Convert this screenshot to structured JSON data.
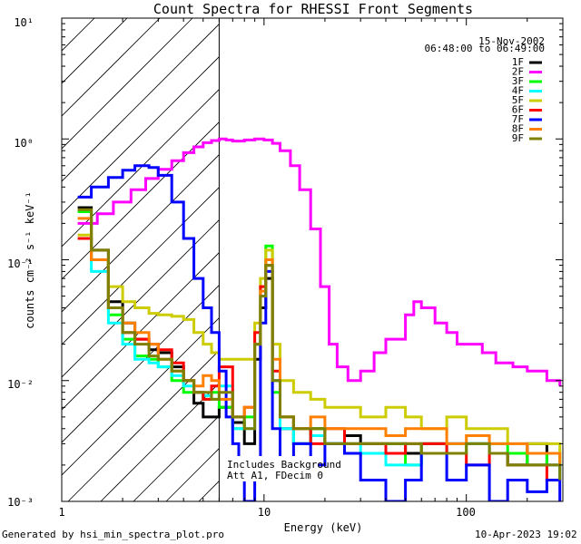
{
  "chart_data": {
    "type": "line",
    "title": "Count Spectra for RHESSI Front Segments",
    "xlabel": "Energy (keV)",
    "ylabel": "counts cm⁻² s⁻¹ keV⁻¹",
    "xscale": "log",
    "yscale": "log",
    "xlim": [
      1,
      300
    ],
    "ylim": [
      0.001,
      10
    ],
    "x_tick_labels": [
      "1",
      "10",
      "100"
    ],
    "y_tick_labels": [
      "10⁻³",
      "10⁻²",
      "10⁻¹",
      "10⁰",
      "10¹"
    ],
    "date": "15-Nov-2002",
    "time_range": "06:48:00 to 06:49:00",
    "hatched_region_below_keV": 6,
    "annotations": [
      "Includes Background",
      "Att A1, FDecim 0"
    ],
    "legend": [
      "1F",
      "2F",
      "3F",
      "4F",
      "5F",
      "6F",
      "7F",
      "8F",
      "9F"
    ],
    "series": [
      {
        "name": "1F",
        "color": "#000000",
        "x": [
          1.2,
          1.4,
          1.7,
          2.0,
          2.3,
          2.7,
          3.0,
          3.5,
          4.0,
          4.5,
          5.0,
          5.5,
          6.0,
          7.0,
          8.0,
          9.0,
          9.6,
          10.2,
          11.0,
          12.0,
          14.0,
          17.0,
          20.0,
          25.0,
          30.0,
          40.0,
          50.0,
          60.0,
          80.0,
          100.0,
          130.0,
          160.0,
          200.0,
          250.0,
          290.0
        ],
        "y": [
          0.27,
          0.12,
          0.045,
          0.03,
          0.022,
          0.018,
          0.017,
          0.013,
          0.01,
          0.0065,
          0.005,
          0.005,
          0.006,
          0.0045,
          0.003,
          0.015,
          0.04,
          0.07,
          0.01,
          0.004,
          0.003,
          0.004,
          0.003,
          0.0035,
          0.003,
          0.003,
          0.0025,
          0.003,
          0.003,
          0.003,
          0.0025,
          0.002,
          0.003,
          0.002,
          0.0015
        ]
      },
      {
        "name": "2F",
        "color": "#ff00ff",
        "x": [
          1.2,
          1.5,
          1.8,
          2.2,
          2.6,
          3.0,
          3.5,
          4.0,
          4.5,
          5.0,
          5.5,
          6.0,
          6.5,
          7.0,
          8.0,
          9.0,
          10.0,
          11.0,
          12.0,
          13.5,
          15.0,
          17.0,
          19.0,
          21.0,
          23.0,
          26.0,
          30.0,
          35.0,
          40.0,
          50.0,
          55.0,
          60.0,
          70.0,
          80.0,
          90.0,
          100.0,
          120.0,
          140.0,
          170.0,
          200.0,
          250.0,
          290.0
        ],
        "y": [
          0.2,
          0.24,
          0.3,
          0.38,
          0.47,
          0.56,
          0.66,
          0.77,
          0.86,
          0.93,
          0.97,
          1.0,
          0.98,
          0.96,
          0.98,
          1.0,
          0.98,
          0.92,
          0.8,
          0.6,
          0.38,
          0.18,
          0.06,
          0.02,
          0.013,
          0.01,
          0.012,
          0.017,
          0.022,
          0.035,
          0.045,
          0.04,
          0.03,
          0.025,
          0.02,
          0.02,
          0.017,
          0.014,
          0.013,
          0.012,
          0.01,
          0.009
        ]
      },
      {
        "name": "3F",
        "color": "#00ff00",
        "x": [
          1.2,
          1.4,
          1.7,
          2.0,
          2.3,
          2.7,
          3.0,
          3.5,
          4.0,
          4.5,
          5.0,
          5.5,
          6.0,
          7.0,
          8.0,
          9.0,
          9.6,
          10.2,
          11.0,
          12.0,
          14.0,
          17.0,
          20.0,
          25.0,
          30.0,
          40.0,
          50.0,
          60.0,
          80.0,
          100.0,
          130.0,
          160.0,
          200.0,
          250.0,
          290.0
        ],
        "y": [
          0.25,
          0.1,
          0.035,
          0.022,
          0.016,
          0.015,
          0.013,
          0.01,
          0.008,
          0.008,
          0.007,
          0.008,
          0.006,
          0.004,
          0.005,
          0.02,
          0.06,
          0.13,
          0.008,
          0.005,
          0.003,
          0.004,
          0.003,
          0.003,
          0.003,
          0.003,
          0.002,
          0.003,
          0.0025,
          0.003,
          0.003,
          0.0025,
          0.002,
          0.0025,
          0.002
        ]
      },
      {
        "name": "4F",
        "color": "#00ffff",
        "x": [
          1.2,
          1.4,
          1.7,
          2.0,
          2.3,
          2.7,
          3.0,
          3.5,
          4.0,
          4.5,
          5.0,
          5.5,
          6.0,
          7.0,
          8.0,
          9.0,
          9.6,
          10.2,
          11.0,
          12.0,
          14.0,
          17.0,
          20.0,
          25.0,
          30.0,
          40.0,
          50.0,
          60.0,
          80.0,
          100.0,
          130.0,
          160.0,
          200.0,
          250.0,
          290.0
        ],
        "y": [
          0.15,
          0.08,
          0.03,
          0.02,
          0.015,
          0.014,
          0.013,
          0.011,
          0.009,
          0.008,
          0.0075,
          0.007,
          0.009,
          0.004,
          0.004,
          0.02,
          0.05,
          0.09,
          0.01,
          0.004,
          0.003,
          0.0035,
          0.003,
          0.003,
          0.0025,
          0.002,
          0.002,
          0.0025,
          0.003,
          0.003,
          0.0025,
          0.002,
          0.002,
          0.002,
          0.0015
        ]
      },
      {
        "name": "5F",
        "color": "#cccc00",
        "x": [
          1.2,
          1.4,
          1.7,
          2.0,
          2.3,
          2.7,
          3.0,
          3.5,
          4.0,
          4.5,
          5.0,
          5.5,
          6.0,
          7.0,
          8.0,
          9.0,
          9.6,
          10.2,
          11.0,
          12.0,
          14.0,
          17.0,
          20.0,
          25.0,
          30.0,
          40.0,
          50.0,
          60.0,
          80.0,
          100.0,
          130.0,
          160.0,
          200.0,
          250.0,
          290.0
        ],
        "y": [
          0.16,
          0.1,
          0.06,
          0.045,
          0.04,
          0.036,
          0.035,
          0.034,
          0.032,
          0.025,
          0.02,
          0.017,
          0.015,
          0.015,
          0.015,
          0.03,
          0.07,
          0.12,
          0.02,
          0.01,
          0.008,
          0.007,
          0.006,
          0.006,
          0.005,
          0.006,
          0.005,
          0.004,
          0.005,
          0.004,
          0.004,
          0.003,
          0.003,
          0.003,
          0.002
        ]
      },
      {
        "name": "6F",
        "color": "#ff0000",
        "x": [
          1.2,
          1.4,
          1.7,
          2.0,
          2.3,
          2.7,
          3.0,
          3.5,
          4.0,
          4.5,
          5.0,
          5.5,
          6.0,
          7.0,
          8.0,
          9.0,
          9.6,
          10.2,
          11.0,
          12.0,
          14.0,
          17.0,
          20.0,
          25.0,
          30.0,
          40.0,
          50.0,
          60.0,
          80.0,
          100.0,
          130.0,
          160.0,
          200.0,
          250.0,
          290.0
        ],
        "y": [
          0.15,
          0.1,
          0.04,
          0.025,
          0.022,
          0.02,
          0.018,
          0.014,
          0.01,
          0.008,
          0.007,
          0.009,
          0.013,
          0.005,
          0.006,
          0.025,
          0.06,
          0.09,
          0.012,
          0.005,
          0.004,
          0.003,
          0.004,
          0.003,
          0.003,
          0.0025,
          0.003,
          0.003,
          0.0025,
          0.002,
          0.0025,
          0.002,
          0.002,
          0.0015,
          0.0015
        ]
      },
      {
        "name": "7F",
        "color": "#0000ff",
        "x": [
          1.2,
          1.4,
          1.7,
          2.0,
          2.3,
          2.7,
          3.0,
          3.5,
          4.0,
          4.5,
          5.0,
          5.5,
          6.0,
          6.5,
          7.0,
          7.5,
          8.0,
          8.5,
          9.0,
          9.6,
          10.2,
          11.0,
          12.0,
          14.0,
          17.0,
          20.0,
          25.0,
          30.0,
          40.0,
          50.0,
          60.0,
          80.0,
          100.0,
          130.0,
          160.0,
          200.0,
          250.0,
          290.0
        ],
        "y": [
          0.33,
          0.4,
          0.48,
          0.55,
          0.6,
          0.58,
          0.5,
          0.3,
          0.15,
          0.07,
          0.04,
          0.025,
          0.012,
          0.005,
          0.003,
          0.0015,
          0.001,
          0.001,
          0.002,
          0.03,
          0.08,
          0.004,
          0.002,
          0.003,
          0.002,
          0.003,
          0.0025,
          0.0015,
          0.001,
          0.0015,
          0.0025,
          0.0015,
          0.002,
          0.001,
          0.0015,
          0.0012,
          0.0015,
          0.001
        ]
      },
      {
        "name": "8F",
        "color": "#ff8000",
        "x": [
          1.2,
          1.4,
          1.7,
          2.0,
          2.3,
          2.7,
          3.0,
          3.5,
          4.0,
          4.5,
          5.0,
          5.5,
          6.0,
          7.0,
          8.0,
          9.0,
          9.6,
          10.2,
          11.0,
          12.0,
          14.0,
          17.0,
          20.0,
          25.0,
          30.0,
          40.0,
          50.0,
          60.0,
          80.0,
          100.0,
          130.0,
          160.0,
          200.0,
          250.0,
          290.0
        ],
        "y": [
          0.22,
          0.1,
          0.04,
          0.03,
          0.025,
          0.02,
          0.015,
          0.012,
          0.01,
          0.009,
          0.011,
          0.01,
          0.007,
          0.005,
          0.006,
          0.02,
          0.055,
          0.1,
          0.015,
          0.005,
          0.004,
          0.005,
          0.004,
          0.004,
          0.004,
          0.0035,
          0.004,
          0.004,
          0.003,
          0.0035,
          0.003,
          0.003,
          0.0025,
          0.0025,
          0.002
        ]
      },
      {
        "name": "9F",
        "color": "#808000",
        "x": [
          1.2,
          1.4,
          1.7,
          2.0,
          2.3,
          2.7,
          3.0,
          3.5,
          4.0,
          4.5,
          5.0,
          5.5,
          6.0,
          7.0,
          8.0,
          9.0,
          9.6,
          10.2,
          11.0,
          12.0,
          14.0,
          17.0,
          20.0,
          25.0,
          30.0,
          40.0,
          50.0,
          60.0,
          80.0,
          100.0,
          130.0,
          160.0,
          200.0,
          250.0,
          290.0
        ],
        "y": [
          0.26,
          0.12,
          0.04,
          0.025,
          0.02,
          0.016,
          0.015,
          0.012,
          0.01,
          0.008,
          0.008,
          0.007,
          0.008,
          0.005,
          0.004,
          0.02,
          0.05,
          0.09,
          0.01,
          0.005,
          0.004,
          0.004,
          0.003,
          0.003,
          0.003,
          0.003,
          0.003,
          0.0025,
          0.0025,
          0.003,
          0.0025,
          0.002,
          0.002,
          0.002,
          0.0015
        ]
      }
    ]
  },
  "footer": {
    "generated_by": "Generated by hsi_min_spectra_plot.pro",
    "timestamp": "10-Apr-2023 19:02"
  }
}
